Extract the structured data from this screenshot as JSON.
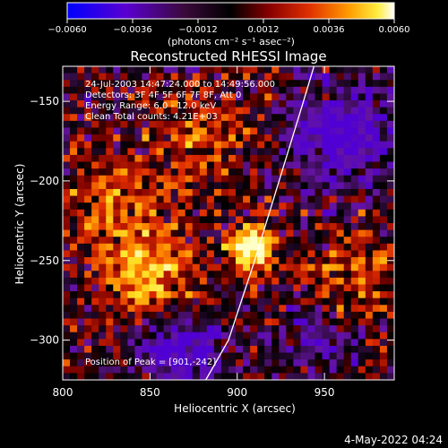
{
  "colorbar": {
    "ticks": [
      {
        "value": -0.006,
        "label": "−0.0060"
      },
      {
        "value": -0.0036,
        "label": "−0.0036"
      },
      {
        "value": -0.0012,
        "label": "−0.0012"
      },
      {
        "value": 0.0012,
        "label": "0.0012"
      },
      {
        "value": 0.0036,
        "label": "0.0036"
      },
      {
        "value": 0.006,
        "label": "0.0060"
      }
    ],
    "range": [
      -0.006,
      0.006
    ],
    "unit_label": "(photons cm⁻² s⁻¹ asec⁻²)"
  },
  "chart_data": {
    "type": "heatmap",
    "title": "Reconstructed RHESSI Image",
    "xlabel": "Heliocentric X (arcsec)",
    "ylabel": "Heliocentric Y (arcsec)",
    "xlim": [
      800,
      990
    ],
    "ylim": [
      -325,
      -128
    ],
    "x_ticks": [
      800,
      850,
      900,
      950
    ],
    "y_ticks": [
      -150,
      -200,
      -250,
      -300
    ],
    "grid": false,
    "colormap": "RHESSI blue-purple-black-red-yellow-white",
    "zlim": [
      -0.006,
      0.006
    ],
    "annotations": [
      "24-Jul-2003 14:47:24.000 to 14:49:56.000",
      "Detectors: 3F 4F 5F 6F 7F 8F, Att 0",
      "Energy Range: 6.0 - 12.0 keV",
      "Clean     Total counts: 4.21E+03"
    ],
    "peak_label": "Position of Peak = [901,-242]",
    "peak": [
      901,
      -242
    ],
    "limb_curve": [
      [
        882,
        -325
      ],
      [
        895,
        -300
      ],
      [
        910,
        -250
      ],
      [
        924,
        -200
      ],
      [
        938,
        -150
      ],
      [
        944,
        -128
      ]
    ]
  },
  "footer": {
    "timestamp": "4-May-2022 04:24"
  }
}
